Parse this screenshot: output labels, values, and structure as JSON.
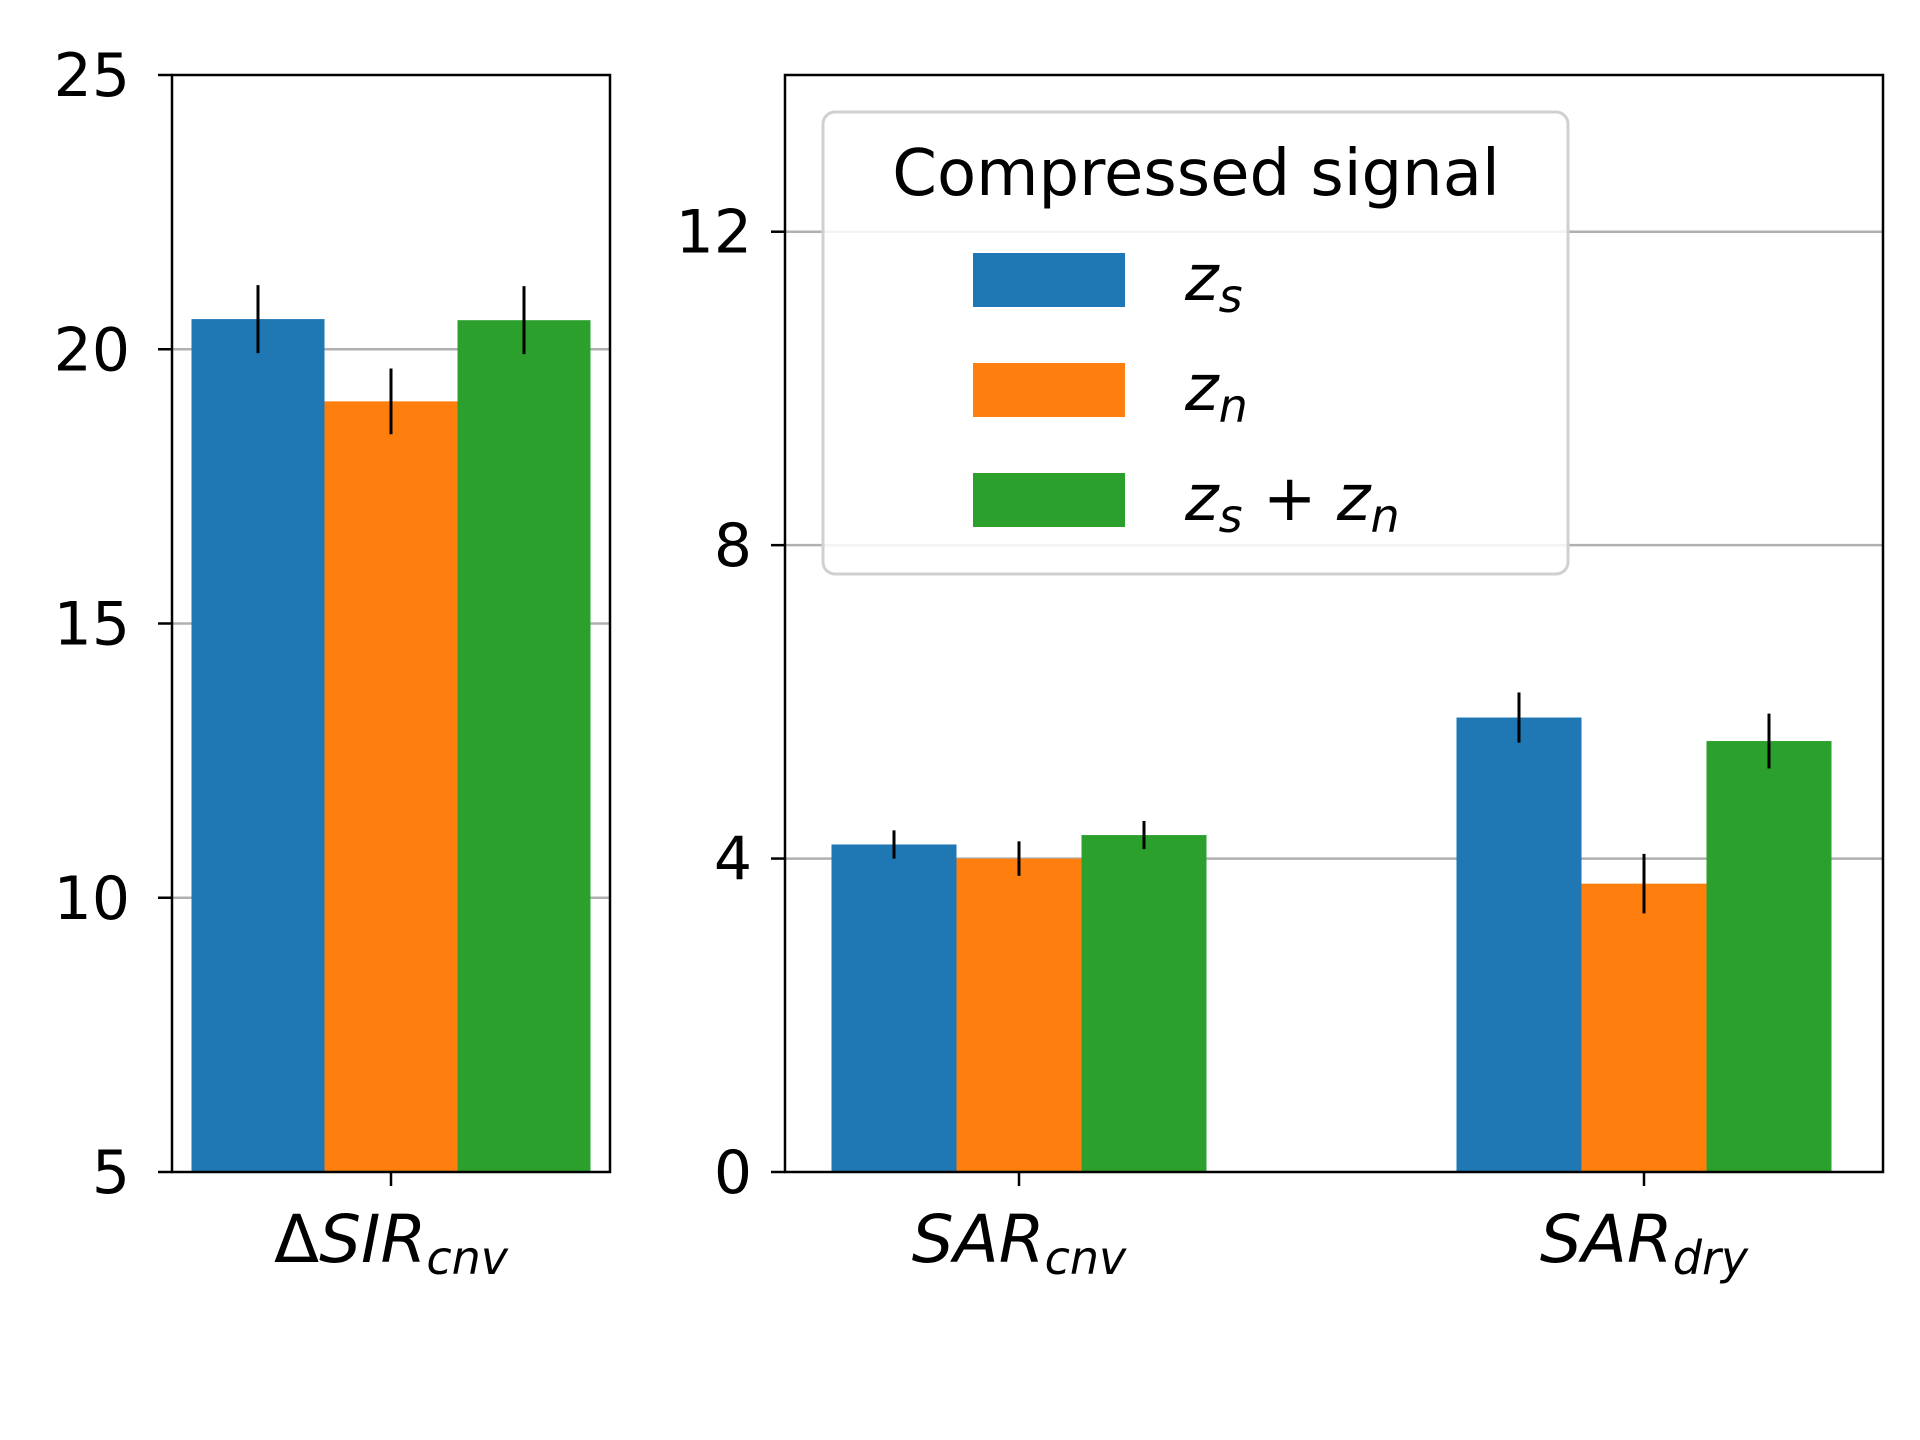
{
  "chart_data": [
    {
      "type": "bar",
      "panel": "left",
      "categories": [
        {
          "main": "ΔSIR",
          "sub": "cnv"
        }
      ],
      "series": [
        {
          "name": "z_s",
          "color": "#1f77b4",
          "values": [
            20.55
          ],
          "errors": [
            0.62
          ]
        },
        {
          "name": "z_n",
          "color": "#ff7f0e",
          "values": [
            19.05
          ],
          "errors": [
            0.6
          ]
        },
        {
          "name": "z_s + z_n",
          "color": "#2ca02c",
          "values": [
            20.53
          ],
          "errors": [
            0.62
          ]
        }
      ],
      "ylim": [
        5,
        25
      ],
      "yticks": [
        "5",
        "10",
        "15",
        "20",
        "25"
      ],
      "grid": true,
      "xlabel": "",
      "ylabel": ""
    },
    {
      "type": "bar",
      "panel": "right",
      "categories": [
        {
          "main": "SAR",
          "sub": "cnv"
        },
        {
          "main": "SAR",
          "sub": "dry"
        }
      ],
      "series": [
        {
          "name": "z_s",
          "color": "#1f77b4",
          "values": [
            4.18,
            5.8
          ],
          "errors": [
            0.18,
            0.32
          ]
        },
        {
          "name": "z_n",
          "color": "#ff7f0e",
          "values": [
            4.0,
            3.68
          ],
          "errors": [
            0.22,
            0.38
          ]
        },
        {
          "name": "z_s + z_n",
          "color": "#2ca02c",
          "values": [
            4.3,
            5.5
          ],
          "errors": [
            0.18,
            0.35
          ]
        }
      ],
      "ylim": [
        0,
        14
      ],
      "yticks": [
        "0",
        "4",
        "8",
        "12"
      ],
      "grid": true,
      "xlabel": "",
      "ylabel": ""
    }
  ],
  "legend": {
    "title": "Compressed signal",
    "placement": "upper-left of right panel",
    "entries": [
      {
        "label": "z",
        "sub": "s",
        "color": "#1f77b4"
      },
      {
        "label": "z",
        "sub": "n",
        "color": "#ff7f0e"
      },
      {
        "label": "z",
        "sub": "s",
        "plus": " + ",
        "label2": "z",
        "sub2": "n",
        "color": "#2ca02c"
      }
    ]
  },
  "styles": {
    "grid_color": "#b0b0b0",
    "axis_color": "#000000",
    "error_color": "#000000",
    "legend_border": "#d0d0d0"
  }
}
